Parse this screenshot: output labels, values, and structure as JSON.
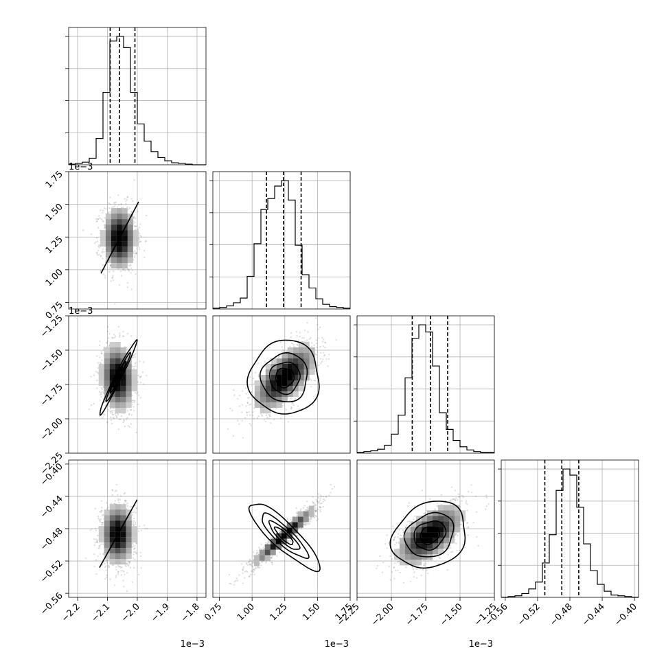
{
  "chart_data": {
    "type": "corner",
    "grid": true,
    "parameters": [
      {
        "range": [
          -2.23,
          -1.77
        ],
        "ticks": [
          -2.2,
          -2.1,
          -2.0,
          -1.9,
          -1.8
        ],
        "tick_labels": [
          "−2.2",
          "−2.1",
          "−2.0",
          "−1.9",
          "−1.8"
        ],
        "scale_label": "1e−3",
        "mean": -2.058,
        "sd": 0.03,
        "quantiles": [
          -2.091,
          -2.06,
          -2.008
        ],
        "hist_counts": [
          1,
          2,
          4,
          10,
          40,
          110,
          188,
          195,
          178,
          110,
          62,
          36,
          20,
          11,
          6,
          3,
          2,
          1,
          0,
          0
        ]
      },
      {
        "range": [
          0.7,
          1.75
        ],
        "ticks": [
          0.75,
          1.0,
          1.25,
          1.5,
          1.75
        ],
        "tick_labels": [
          "0.75",
          "1.00",
          "1.25",
          "1.50",
          "1.75"
        ],
        "scale_label": "1e−3",
        "mean": 1.245,
        "sd": 0.13,
        "quantiles": [
          1.11,
          1.24,
          1.375
        ],
        "hist_counts": [
          1,
          2,
          4,
          8,
          14,
          42,
          84,
          128,
          142,
          158,
          165,
          140,
          82,
          44,
          27,
          13,
          6,
          3,
          2,
          1
        ]
      },
      {
        "range": [
          -2.25,
          -1.25
        ],
        "ticks": [
          -2.25,
          -2.0,
          -1.75,
          -1.5,
          -1.25
        ],
        "tick_labels": [
          "−2.25",
          "−2.00",
          "−1.75",
          "−1.50",
          "−1.25"
        ],
        "scale_label": "1e−3",
        "mean": -1.715,
        "sd": 0.13,
        "quantiles": [
          -1.848,
          -1.715,
          -1.59
        ],
        "hist_counts": [
          1,
          2,
          3,
          5,
          10,
          24,
          48,
          95,
          145,
          162,
          153,
          110,
          51,
          30,
          16,
          8,
          4,
          2,
          1,
          1
        ]
      },
      {
        "range": [
          -0.565,
          -0.395
        ],
        "ticks": [
          -0.56,
          -0.52,
          -0.48,
          -0.44,
          -0.4
        ],
        "tick_labels": [
          "−0.56",
          "−0.52",
          "−0.48",
          "−0.44",
          "−0.40"
        ],
        "scale_label": "",
        "mean": -0.49,
        "sd": 0.02,
        "quantiles": [
          -0.511,
          -0.49,
          -0.469
        ],
        "hist_counts": [
          0,
          1,
          2,
          5,
          11,
          20,
          45,
          82,
          140,
          168,
          160,
          118,
          70,
          35,
          17,
          8,
          3,
          2,
          1,
          0
        ]
      }
    ],
    "pairs": [
      {
        "row": 1,
        "col": 0,
        "corr": 0.0,
        "center": [
          -2.06,
          1.24
        ]
      },
      {
        "row": 2,
        "col": 0,
        "corr": -0.1,
        "center": [
          -2.065,
          -1.7
        ]
      },
      {
        "row": 2,
        "col": 1,
        "corr": 0.65,
        "center": [
          1.25,
          -1.7
        ]
      },
      {
        "row": 3,
        "col": 0,
        "corr": 0.0,
        "center": [
          -2.065,
          -0.487
        ]
      },
      {
        "row": 3,
        "col": 1,
        "corr": 0.95,
        "center": [
          1.245,
          -0.489
        ]
      },
      {
        "row": 3,
        "col": 2,
        "corr": 0.6,
        "center": [
          -1.72,
          -0.488
        ]
      }
    ],
    "colors": {
      "points": "#7f7f7f",
      "line": "#000000",
      "grid": "#b0b0b0"
    }
  }
}
